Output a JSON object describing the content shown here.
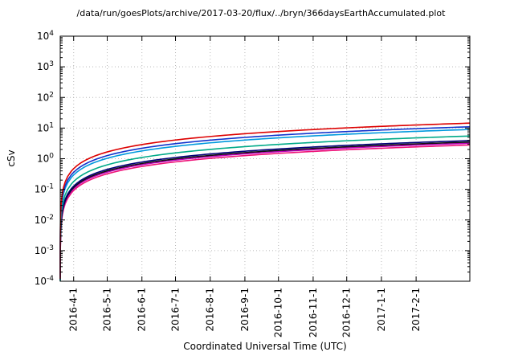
{
  "colors": {
    "background": "#ffffff",
    "axis": "#000000",
    "grid": "#b8b8b8"
  },
  "chart_data": {
    "type": "line",
    "title": "/data/run/goesPlots/archive/2017-03-20/flux/../bryn/366daysEarthAccumulated.plot",
    "xlabel": "Coordinated Universal Time (UTC)",
    "ylabel": "cSv",
    "y_scale": "log10",
    "ylim": [
      0.0001,
      10000
    ],
    "y_tick_exponents": [
      4,
      3,
      2,
      1,
      0,
      -1,
      -2,
      -3,
      -4
    ],
    "grid": true,
    "legend": "none",
    "x_axis": {
      "range_days": [
        0,
        366
      ],
      "ticks": [
        {
          "label": "2016-4-1",
          "day": 12
        },
        {
          "label": "2016-5-1",
          "day": 42
        },
        {
          "label": "2016-6-1",
          "day": 73
        },
        {
          "label": "2016-7-1",
          "day": 103
        },
        {
          "label": "2016-8-1",
          "day": 134
        },
        {
          "label": "2016-9-1",
          "day": 165
        },
        {
          "label": "2016-10-1",
          "day": 195
        },
        {
          "label": "2016-11-1",
          "day": 226
        },
        {
          "label": "2016-12-1",
          "day": 256
        },
        {
          "label": "2017-1-1",
          "day": 287
        },
        {
          "label": "2017-2-1",
          "day": 318
        }
      ]
    },
    "sample_days": [
      0,
      12,
      42,
      73,
      103,
      134,
      165,
      195,
      226,
      256,
      287,
      318,
      366
    ],
    "series": [
      {
        "name": "red",
        "color": "#dd0000",
        "final_csv": 14.5,
        "csv": [
          0,
          0.475,
          1.664,
          2.892,
          4.081,
          5.309,
          6.537,
          7.725,
          8.954,
          10.142,
          11.37,
          12.598,
          14.5
        ]
      },
      {
        "name": "royal-blue",
        "color": "#1133cc",
        "final_csv": 11.0,
        "csv": [
          0,
          0.361,
          1.262,
          2.194,
          3.096,
          4.027,
          4.959,
          5.861,
          6.792,
          7.694,
          8.626,
          9.557,
          11.0
        ]
      },
      {
        "name": "sky-blue",
        "color": "#0099dd",
        "final_csv": 9.0,
        "csv": [
          0,
          0.295,
          1.033,
          1.795,
          2.533,
          3.295,
          4.057,
          4.795,
          5.557,
          6.295,
          7.057,
          7.82,
          9.0
        ]
      },
      {
        "name": "teal",
        "color": "#00aa88",
        "final_csv": 5.5,
        "csv": [
          0,
          0.18,
          0.631,
          1.097,
          1.548,
          2.014,
          2.48,
          2.93,
          3.396,
          3.847,
          4.313,
          4.779,
          5.5
        ]
      },
      {
        "name": "navy",
        "color": "#000077",
        "final_csv": 3.9,
        "csv": [
          0,
          0.128,
          0.448,
          0.778,
          1.098,
          1.428,
          1.758,
          2.078,
          2.408,
          2.728,
          3.058,
          3.389,
          3.9
        ]
      },
      {
        "name": "black",
        "color": "#111111",
        "final_csv": 3.5,
        "csv": [
          0,
          0.115,
          0.402,
          0.698,
          0.985,
          1.281,
          1.578,
          1.865,
          2.161,
          2.448,
          2.745,
          3.041,
          3.5
        ]
      },
      {
        "name": "magenta",
        "color": "#bb00bb",
        "final_csv": 3.2,
        "csv": [
          0,
          0.105,
          0.367,
          0.638,
          0.901,
          1.172,
          1.443,
          1.705,
          1.976,
          2.238,
          2.509,
          2.78,
          3.2
        ]
      },
      {
        "name": "pink",
        "color": "#ee1177",
        "final_csv": 2.8,
        "csv": [
          0,
          0.092,
          0.321,
          0.558,
          0.788,
          1.025,
          1.262,
          1.492,
          1.729,
          1.958,
          2.196,
          2.433,
          2.8
        ]
      }
    ]
  }
}
